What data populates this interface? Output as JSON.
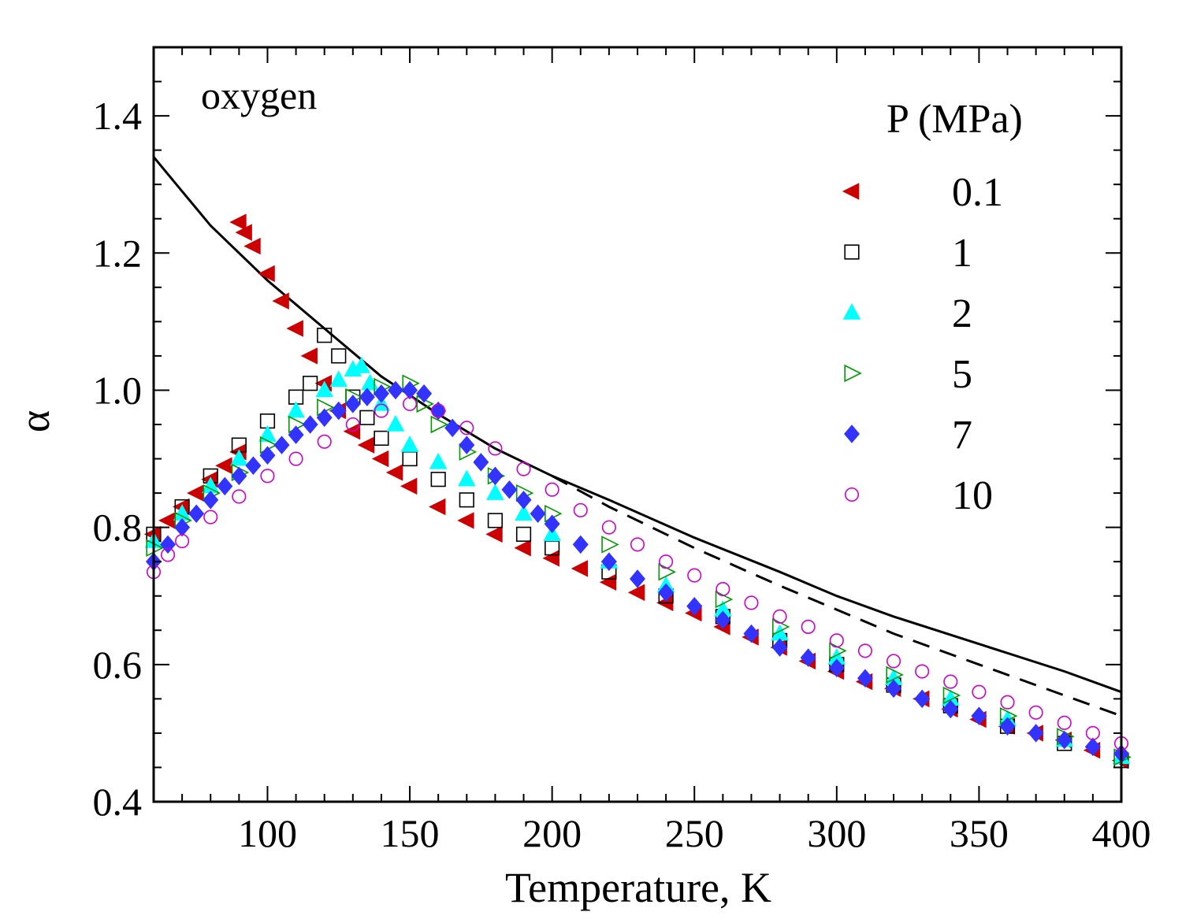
{
  "chart_data": {
    "type": "scatter",
    "title": "",
    "annotation": "oxygen",
    "xlabel": "Temperature, K",
    "ylabel": "α",
    "xlim": [
      60,
      400
    ],
    "ylim": [
      0.4,
      1.5
    ],
    "xticks": [
      100,
      150,
      200,
      250,
      300,
      350,
      400
    ],
    "xtick_labels": [
      "100",
      "150",
      "200",
      "250",
      "300",
      "350",
      "400"
    ],
    "yticks": [
      0.4,
      0.6,
      0.8,
      1.0,
      1.2,
      1.4
    ],
    "ytick_labels": [
      "0.4",
      "0.6",
      "0.8",
      "1.0",
      "1.2",
      "1.4"
    ],
    "grid": false,
    "legend_title": "P (MPa)",
    "legend_position": "top-right",
    "series": [
      {
        "name": "0.1",
        "marker": "triangle-left",
        "color": "#cc0000",
        "filled": true,
        "x": [
          60,
          65,
          70,
          75,
          80,
          85,
          90,
          90,
          92,
          95,
          100,
          105,
          110,
          115,
          120,
          125,
          130,
          135,
          140,
          145,
          150,
          160,
          170,
          180,
          190,
          200,
          210,
          220,
          230,
          240,
          250,
          260,
          270,
          280,
          290,
          300,
          310,
          320,
          330,
          340,
          350,
          360,
          370,
          380,
          390,
          400
        ],
        "y": [
          0.79,
          0.81,
          0.83,
          0.85,
          0.87,
          0.89,
          0.91,
          1.245,
          1.23,
          1.21,
          1.17,
          1.13,
          1.09,
          1.05,
          1.01,
          0.97,
          0.94,
          0.92,
          0.9,
          0.88,
          0.86,
          0.83,
          0.81,
          0.79,
          0.77,
          0.755,
          0.74,
          0.72,
          0.705,
          0.69,
          0.675,
          0.655,
          0.64,
          0.625,
          0.605,
          0.59,
          0.575,
          0.565,
          0.55,
          0.535,
          0.52,
          0.51,
          0.5,
          0.49,
          0.475,
          0.46
        ]
      },
      {
        "name": "1",
        "marker": "square",
        "color": "#000000",
        "filled": false,
        "x": [
          60,
          70,
          80,
          90,
          100,
          110,
          115,
          120,
          125,
          130,
          135,
          140,
          150,
          160,
          170,
          180,
          190,
          200,
          220,
          240,
          260,
          280,
          300,
          320,
          340,
          360,
          380,
          400
        ],
        "y": [
          0.79,
          0.83,
          0.875,
          0.92,
          0.955,
          0.99,
          1.01,
          1.08,
          1.05,
          0.99,
          0.96,
          0.93,
          0.9,
          0.87,
          0.84,
          0.81,
          0.79,
          0.77,
          0.735,
          0.7,
          0.67,
          0.635,
          0.6,
          0.57,
          0.54,
          0.51,
          0.485,
          0.46
        ]
      },
      {
        "name": "2",
        "marker": "triangle-up",
        "color": "#00ffff",
        "filled": true,
        "x": [
          60,
          70,
          80,
          90,
          100,
          110,
          120,
          125,
          130,
          133,
          136,
          140,
          145,
          150,
          160,
          170,
          180,
          190,
          200,
          220,
          240,
          260,
          280,
          300,
          320,
          340,
          360,
          380,
          400
        ],
        "y": [
          0.78,
          0.82,
          0.86,
          0.9,
          0.935,
          0.97,
          1.0,
          1.015,
          1.03,
          1.035,
          1.01,
          0.98,
          0.95,
          0.92,
          0.895,
          0.87,
          0.85,
          0.82,
          0.79,
          0.75,
          0.715,
          0.68,
          0.645,
          0.61,
          0.58,
          0.55,
          0.52,
          0.49,
          0.465
        ]
      },
      {
        "name": "5",
        "marker": "triangle-right",
        "color": "#009900",
        "filled": false,
        "x": [
          60,
          70,
          80,
          90,
          100,
          110,
          120,
          130,
          140,
          150,
          155,
          160,
          170,
          180,
          190,
          200,
          220,
          240,
          260,
          280,
          300,
          320,
          340,
          360,
          380,
          400
        ],
        "y": [
          0.77,
          0.81,
          0.85,
          0.88,
          0.92,
          0.95,
          0.975,
          0.99,
          1.005,
          1.01,
          0.98,
          0.95,
          0.91,
          0.875,
          0.85,
          0.82,
          0.775,
          0.735,
          0.695,
          0.655,
          0.62,
          0.585,
          0.555,
          0.525,
          0.495,
          0.465
        ]
      },
      {
        "name": "7",
        "marker": "diamond",
        "color": "#3333ff",
        "filled": true,
        "x": [
          60,
          65,
          70,
          75,
          80,
          85,
          90,
          95,
          100,
          105,
          110,
          115,
          120,
          125,
          130,
          135,
          140,
          145,
          150,
          155,
          160,
          165,
          170,
          175,
          180,
          185,
          190,
          195,
          200,
          210,
          220,
          230,
          240,
          250,
          260,
          270,
          280,
          290,
          300,
          310,
          320,
          330,
          340,
          350,
          360,
          370,
          380,
          390,
          400
        ],
        "y": [
          0.75,
          0.775,
          0.8,
          0.82,
          0.84,
          0.86,
          0.875,
          0.89,
          0.905,
          0.92,
          0.935,
          0.95,
          0.96,
          0.97,
          0.98,
          0.99,
          0.995,
          1.0,
          1.0,
          0.995,
          0.97,
          0.945,
          0.92,
          0.895,
          0.875,
          0.855,
          0.84,
          0.82,
          0.805,
          0.775,
          0.75,
          0.725,
          0.705,
          0.685,
          0.665,
          0.645,
          0.625,
          0.61,
          0.595,
          0.58,
          0.565,
          0.55,
          0.535,
          0.525,
          0.51,
          0.5,
          0.49,
          0.48,
          0.47
        ]
      },
      {
        "name": "10",
        "marker": "circle",
        "color": "#cc00cc",
        "filled": false,
        "x": [
          60,
          65,
          70,
          80,
          90,
          100,
          110,
          120,
          130,
          140,
          150,
          160,
          170,
          180,
          190,
          200,
          210,
          220,
          230,
          240,
          250,
          260,
          270,
          280,
          290,
          300,
          310,
          320,
          330,
          340,
          350,
          360,
          370,
          380,
          390,
          400
        ],
        "y": [
          0.735,
          0.76,
          0.78,
          0.815,
          0.845,
          0.875,
          0.9,
          0.925,
          0.95,
          0.97,
          0.98,
          0.97,
          0.945,
          0.915,
          0.885,
          0.855,
          0.825,
          0.8,
          0.775,
          0.75,
          0.73,
          0.71,
          0.69,
          0.67,
          0.655,
          0.635,
          0.62,
          0.605,
          0.59,
          0.575,
          0.56,
          0.545,
          0.53,
          0.515,
          0.5,
          0.485
        ]
      }
    ],
    "lines": [
      {
        "style": "solid",
        "color": "#000000",
        "x": [
          60,
          70,
          80,
          90,
          100,
          120,
          140,
          160,
          180,
          200,
          220,
          250,
          280,
          300,
          320,
          350,
          380,
          400
        ],
        "y": [
          1.34,
          1.29,
          1.24,
          1.2,
          1.16,
          1.09,
          1.02,
          0.965,
          0.915,
          0.875,
          0.84,
          0.785,
          0.735,
          0.7,
          0.67,
          0.63,
          0.59,
          0.56
        ]
      },
      {
        "style": "dashed",
        "color": "#000000",
        "x": [
          200,
          220,
          250,
          280,
          300,
          320,
          350,
          380,
          400
        ],
        "y": [
          0.875,
          0.83,
          0.77,
          0.715,
          0.68,
          0.645,
          0.6,
          0.555,
          0.525
        ]
      }
    ]
  }
}
